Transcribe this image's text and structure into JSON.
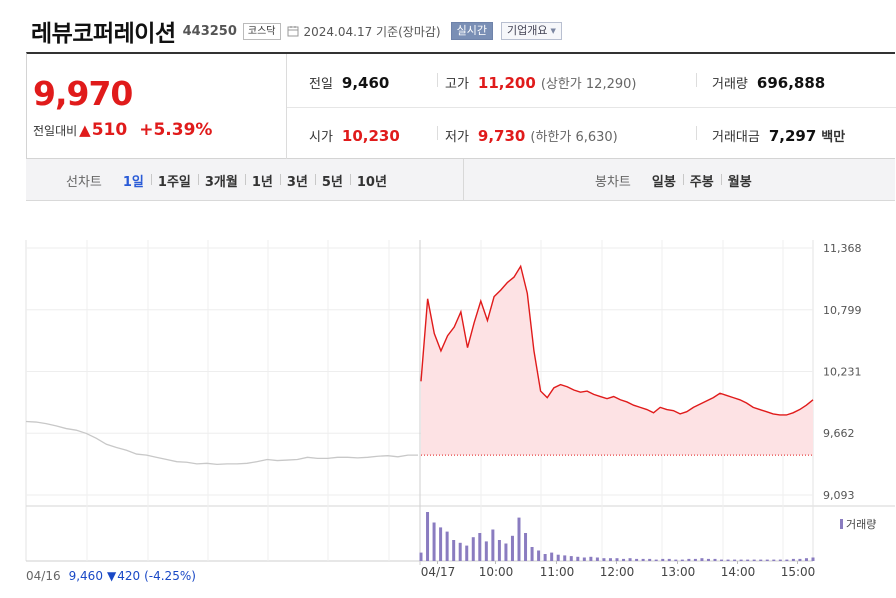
{
  "header": {
    "name": "레뷰코퍼레이션",
    "code": "443250",
    "market": "코스닥",
    "date_text": "2024.04.17  기준(장마감)",
    "realtime_label": "실시간",
    "company_label": "기업개요"
  },
  "summary": {
    "price": "9,970",
    "change_label": "전일대비",
    "change_value": "510",
    "change_percent": "+5.39%",
    "stats": {
      "prev_close_label": "전일",
      "prev_close": "9,460",
      "high_label": "고가",
      "high": "11,200",
      "upper_limit_text": "(상한가 12,290)",
      "volume_label": "거래량",
      "volume": "696,888",
      "open_label": "시가",
      "open": "10,230",
      "low_label": "저가",
      "low": "9,730",
      "lower_limit_text": "(하한가 6,630)",
      "amount_label": "거래대금",
      "amount": "7,297",
      "amount_unit": "백만"
    }
  },
  "tabs": {
    "line_title": "선차트",
    "line_periods": [
      "1일",
      "1주일",
      "3개월",
      "1년",
      "3년",
      "5년",
      "10년"
    ],
    "active_period": "1일",
    "candle_title": "봉차트",
    "candle_periods": [
      "일봉",
      "주봉",
      "월봉"
    ]
  },
  "colors": {
    "up": "#e01b1b",
    "down": "#1a49c6",
    "area_fill": "#fde2e4",
    "prev_line": "#c8c8c8",
    "volume": "#8a7cc0"
  },
  "chart_data": {
    "type": "line",
    "ylim": [
      9093,
      11368
    ],
    "y_ticks": [
      11368,
      10799,
      10231,
      9662,
      9093
    ],
    "y_tick_labels": [
      "11,368",
      "10,799",
      "10,231",
      "9,662",
      "9,093"
    ],
    "x_tick_labels": [
      "04/16",
      "04/17",
      "10:00",
      "11:00",
      "12:00",
      "13:00",
      "14:00",
      "15:00"
    ],
    "grid": true,
    "baseline_prev_close": 9460,
    "series": [
      {
        "name": "",
        "day": "04/16",
        "values": [
          9770,
          9765,
          9750,
          9730,
          9705,
          9690,
          9660,
          9615,
          9560,
          9530,
          9505,
          9470,
          9460,
          9440,
          9420,
          9400,
          9395,
          9380,
          9385,
          9375,
          9380,
          9380,
          9385,
          9400,
          9420,
          9410,
          9415,
          9420,
          9440,
          9430,
          9430,
          9440,
          9440,
          9435,
          9440,
          9450,
          9455,
          9445,
          9460,
          9460
        ]
      },
      {
        "name": "",
        "day": "04/17",
        "values": [
          10140,
          10900,
          10580,
          10420,
          10560,
          10640,
          10780,
          10450,
          10680,
          10880,
          10700,
          10920,
          10980,
          11050,
          11100,
          11200,
          10950,
          10420,
          10050,
          9990,
          10080,
          10110,
          10090,
          10060,
          10040,
          10050,
          10020,
          10000,
          9980,
          10000,
          9970,
          9950,
          9920,
          9900,
          9880,
          9850,
          9900,
          9880,
          9870,
          9840,
          9860,
          9900,
          9930,
          9960,
          9990,
          10030,
          10010,
          9990,
          9970,
          9940,
          9900,
          9880,
          9860,
          9840,
          9830,
          9830,
          9850,
          9880,
          9920,
          9970
        ]
      }
    ],
    "volume": {
      "label": "거래량",
      "values": [
        12,
        70,
        55,
        48,
        42,
        30,
        26,
        22,
        34,
        40,
        28,
        45,
        30,
        25,
        36,
        62,
        40,
        20,
        15,
        10,
        12,
        9,
        8,
        7,
        6,
        5,
        6,
        5,
        4,
        4,
        4,
        3,
        4,
        3,
        3,
        3,
        2,
        3,
        3,
        2,
        2,
        3,
        3,
        4,
        3,
        3,
        2,
        2,
        2,
        2,
        2,
        2,
        2,
        2,
        2,
        2,
        2,
        3,
        3,
        4,
        5
      ]
    }
  },
  "footer": {
    "prev_date": "04/16",
    "prev_price": "9,460",
    "prev_change": "420",
    "prev_pct": "(-4.25%)"
  }
}
